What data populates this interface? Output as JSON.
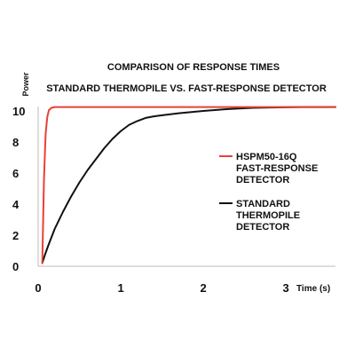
{
  "chart_data": {
    "type": "line",
    "title": "COMPARISON OF RESPONSE TIMES",
    "subtitle": "STANDARD THERMOPILE VS. FAST-RESPONSE DETECTOR",
    "xlabel": "Time (s)",
    "ylabel": "Power",
    "xlim": [
      0,
      3.6
    ],
    "ylim": [
      0,
      10.8
    ],
    "x_ticks": [
      0,
      1,
      2,
      3
    ],
    "y_ticks": [
      0,
      2,
      4,
      6,
      8,
      10
    ],
    "grid": false,
    "legend_position": "right",
    "series": [
      {
        "name": "HSPM50-16Q FAST-RESPONSE DETECTOR",
        "legend_lines": [
          "HSPM50-16Q",
          "FAST-RESPONSE",
          "DETECTOR"
        ],
        "color": "#e8403a",
        "x": [
          0.05,
          0.07,
          0.09,
          0.11,
          0.13,
          0.16,
          0.2,
          0.3,
          1.0,
          2.0,
          3.0,
          3.6
        ],
        "y": [
          0.2,
          5.5,
          8.5,
          9.6,
          10.05,
          10.2,
          10.25,
          10.25,
          10.25,
          10.25,
          10.25,
          10.25
        ]
      },
      {
        "name": "STANDARD THERMOPILE DETECTOR",
        "legend_lines": [
          "STANDARD",
          "THERMOPILE",
          "DETECTOR"
        ],
        "color": "#111111",
        "x": [
          0.05,
          0.08,
          0.12,
          0.2,
          0.3,
          0.4,
          0.5,
          0.6,
          0.7,
          0.8,
          0.9,
          1.0,
          1.1,
          1.2,
          1.3,
          1.4,
          1.5,
          1.7,
          2.0,
          2.3,
          2.6,
          2.9,
          3.2,
          3.6
        ],
        "y": [
          0.2,
          0.7,
          1.3,
          2.4,
          3.5,
          4.5,
          5.4,
          6.2,
          6.9,
          7.6,
          8.2,
          8.7,
          9.1,
          9.35,
          9.55,
          9.65,
          9.72,
          9.85,
          10.0,
          10.12,
          10.2,
          10.23,
          10.25,
          10.25
        ]
      }
    ]
  }
}
